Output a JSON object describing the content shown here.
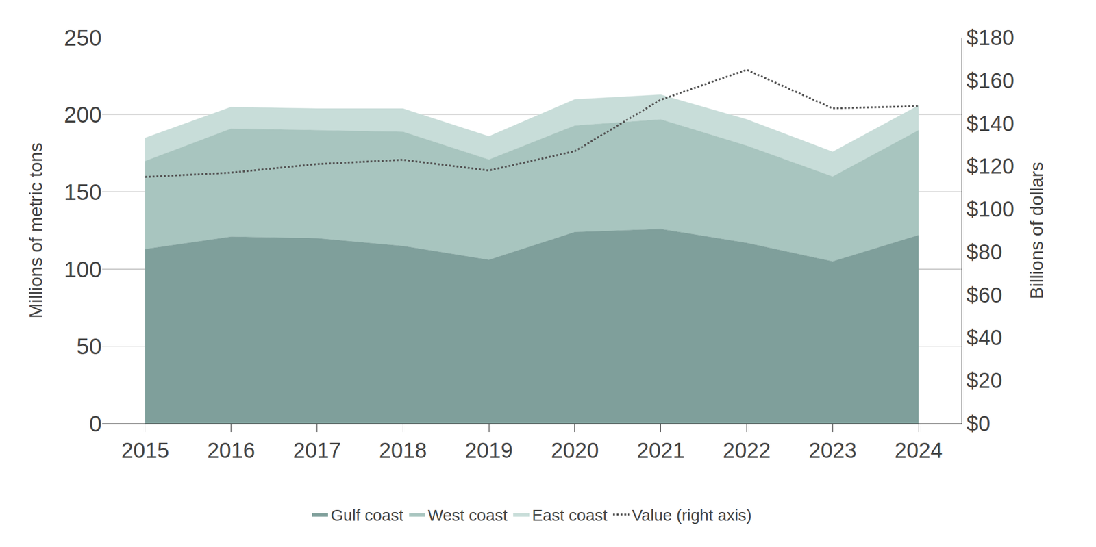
{
  "chart_data": {
    "type": "area",
    "stacked": true,
    "grid": true,
    "legend": "bottom",
    "categories": [
      "2015",
      "2016",
      "2017",
      "2018",
      "2019",
      "2020",
      "2021",
      "2022",
      "2023",
      "2024"
    ],
    "ylabel": "Millions of metric tons",
    "y2label": "Billions of dollars",
    "ylim": [
      0,
      250
    ],
    "yticks": [
      0,
      50,
      100,
      150,
      200,
      250
    ],
    "y2lim": [
      0,
      180
    ],
    "y2ticks": [
      {
        "value": 0,
        "label": "$0"
      },
      {
        "value": 20,
        "label": "$20"
      },
      {
        "value": 40,
        "label": "$40"
      },
      {
        "value": 60,
        "label": "$60"
      },
      {
        "value": 80,
        "label": "$80"
      },
      {
        "value": 100,
        "label": "$100"
      },
      {
        "value": 120,
        "label": "$120"
      },
      {
        "value": 140,
        "label": "$140"
      },
      {
        "value": 160,
        "label": "$160"
      },
      {
        "value": 180,
        "label": "$180"
      }
    ],
    "series": [
      {
        "name": "Gulf coast",
        "type": "area",
        "color": "#7f9f9b",
        "values": [
          113,
          121,
          120,
          115,
          106,
          124,
          126,
          117,
          105,
          122
        ]
      },
      {
        "name": "West coast",
        "type": "area",
        "color": "#a8c5bf",
        "values": [
          57,
          70,
          70,
          74,
          65,
          69,
          71,
          63,
          55,
          68
        ]
      },
      {
        "name": "East coast",
        "type": "area",
        "color": "#c8ddd9",
        "values": [
          15,
          14,
          14,
          15,
          15,
          17,
          16,
          17,
          16,
          16
        ]
      },
      {
        "name": "Value (right axis)",
        "type": "line",
        "axis": "y2",
        "color": "#555555",
        "line_style": "dot",
        "values": [
          115,
          117,
          121,
          123,
          118,
          127,
          151,
          165,
          147,
          148
        ]
      }
    ]
  }
}
